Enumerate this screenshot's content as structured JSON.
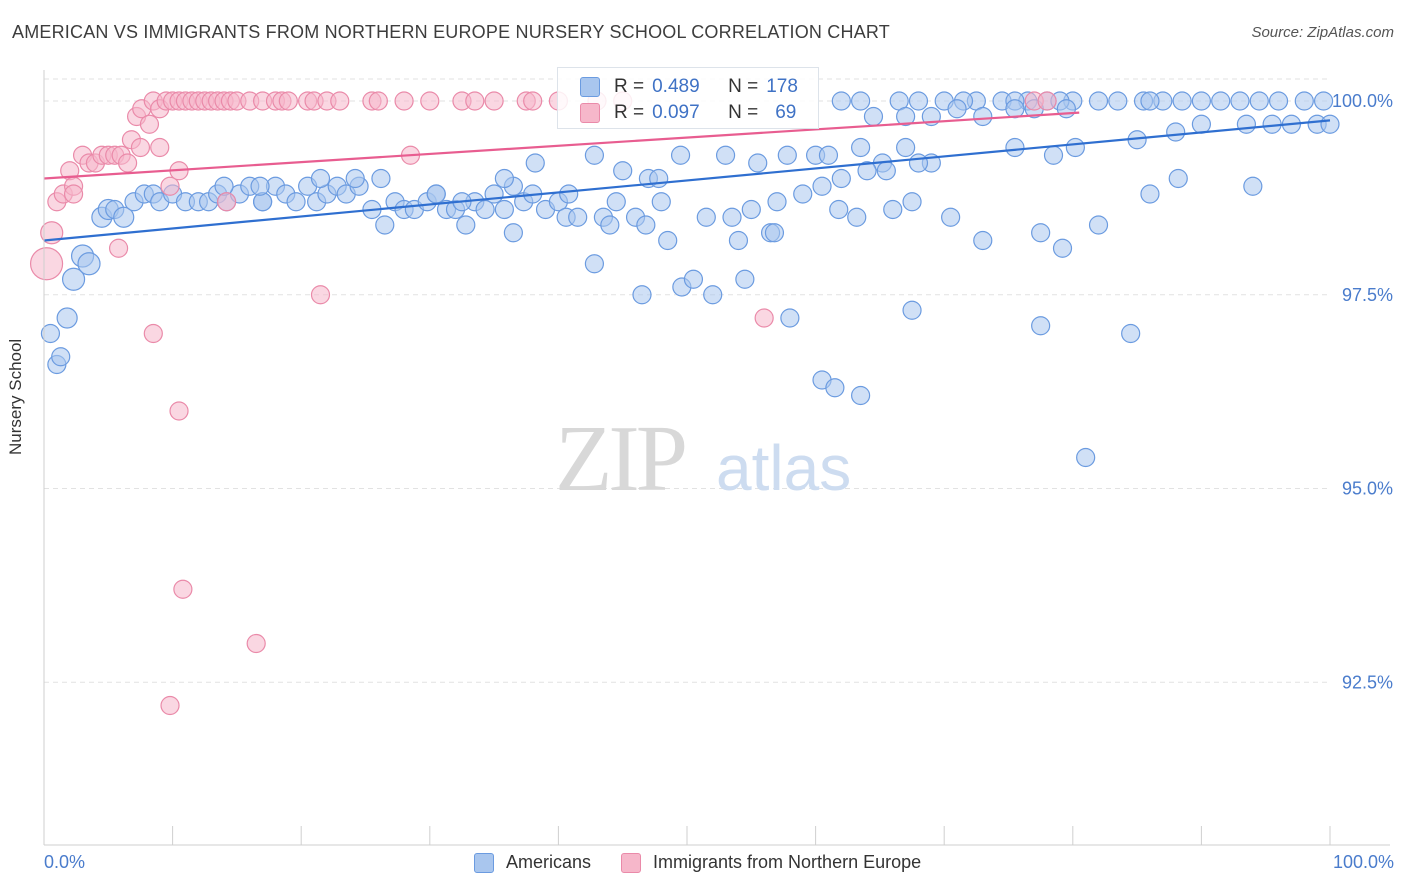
{
  "title": "AMERICAN VS IMMIGRANTS FROM NORTHERN EUROPE NURSERY SCHOOL CORRELATION CHART",
  "source": "Source: ZipAtlas.com",
  "watermark": {
    "zip": "ZIP",
    "atlas": "atlas"
  },
  "stats": {
    "americans": {
      "r_label": "R =",
      "r_value": "0.489",
      "n_label": "N =",
      "n_value": "178"
    },
    "immigrants": {
      "r_label": "R =",
      "r_value": "0.097",
      "n_label": "N =",
      "n_value": "69"
    }
  },
  "legend": {
    "americans": "Americans",
    "immigrants": "Immigrants from Northern Europe"
  },
  "colors": {
    "americans_fill": "#a9c6ee",
    "americans_stroke": "#6b9be0",
    "americans_line": "#2f6fd0",
    "immigrants_fill": "#f6b7ca",
    "immigrants_stroke": "#ea8aa9",
    "immigrants_line": "#e85d90",
    "tick_label": "#4a7ccc"
  },
  "chart_data": {
    "type": "scatter",
    "title": "AMERICAN VS IMMIGRANTS FROM NORTHERN EUROPE NURSERY SCHOOL CORRELATION CHART",
    "xlabel": "",
    "ylabel": "Nursery School",
    "xlim": [
      0,
      100
    ],
    "ylim": [
      90.4,
      100.4
    ],
    "x_tick_labels": [
      "0.0%",
      "100.0%"
    ],
    "y_ticks": [
      92.5,
      95.0,
      97.5,
      100.0
    ],
    "y_tick_labels": [
      "92.5%",
      "95.0%",
      "97.5%",
      "100.0%"
    ],
    "grid": true,
    "series": [
      {
        "name": "Americans",
        "trend": {
          "x": [
            0,
            100
          ],
          "y": [
            98.2,
            99.75
          ]
        },
        "points": [
          [
            0.5,
            97.0,
            9
          ],
          [
            1,
            96.6,
            9
          ],
          [
            1.3,
            96.7,
            9
          ],
          [
            1.8,
            97.2,
            10
          ],
          [
            2.3,
            97.7,
            11
          ],
          [
            3,
            98.0,
            11
          ],
          [
            3.5,
            97.9,
            11
          ],
          [
            4.5,
            98.5,
            10
          ],
          [
            5,
            98.6,
            10
          ],
          [
            5.5,
            98.6,
            9
          ],
          [
            6.2,
            98.5,
            10
          ],
          [
            7,
            98.7,
            9
          ],
          [
            7.8,
            98.8,
            9
          ],
          [
            8.5,
            98.8,
            9
          ],
          [
            9,
            98.7,
            9
          ],
          [
            10,
            98.8,
            9
          ],
          [
            11,
            98.7,
            9
          ],
          [
            12,
            98.7,
            9
          ],
          [
            12.8,
            98.7,
            9
          ],
          [
            13.5,
            98.8,
            9
          ],
          [
            14.2,
            98.7,
            9
          ],
          [
            15.2,
            98.8,
            9
          ],
          [
            16,
            98.9,
            9
          ],
          [
            17,
            98.7,
            9
          ],
          [
            18,
            98.9,
            9
          ],
          [
            18.8,
            98.8,
            9
          ],
          [
            19.6,
            98.7,
            9
          ],
          [
            20.5,
            98.9,
            9
          ],
          [
            21.2,
            98.7,
            9
          ],
          [
            22,
            98.8,
            9
          ],
          [
            22.8,
            98.9,
            9
          ],
          [
            23.5,
            98.8,
            9
          ],
          [
            24.5,
            98.9,
            9
          ],
          [
            25.5,
            98.6,
            9
          ],
          [
            26.5,
            98.4,
            9
          ],
          [
            27.3,
            98.7,
            9
          ],
          [
            28,
            98.6,
            9
          ],
          [
            28.8,
            98.6,
            9
          ],
          [
            29.8,
            98.7,
            9
          ],
          [
            30.5,
            98.8,
            9
          ],
          [
            31.3,
            98.6,
            9
          ],
          [
            32,
            98.6,
            9
          ],
          [
            32.8,
            98.4,
            9
          ],
          [
            33.5,
            98.7,
            9
          ],
          [
            34.3,
            98.6,
            9
          ],
          [
            35,
            98.8,
            9
          ],
          [
            35.8,
            98.6,
            9
          ],
          [
            36.5,
            98.9,
            9
          ],
          [
            37.3,
            98.7,
            9
          ],
          [
            38,
            98.8,
            9
          ],
          [
            39,
            98.6,
            9
          ],
          [
            40,
            98.7,
            9
          ],
          [
            40.8,
            98.8,
            9
          ],
          [
            17,
            98.7,
            9
          ],
          [
            14,
            98.9,
            9
          ],
          [
            16.8,
            98.9,
            9
          ],
          [
            21.5,
            99.0,
            9
          ],
          [
            24.2,
            99.0,
            9
          ],
          [
            26.2,
            99.0,
            9
          ],
          [
            30.5,
            98.8,
            9
          ],
          [
            32.5,
            98.7,
            9
          ],
          [
            35.8,
            99.0,
            9
          ],
          [
            38.2,
            99.2,
            9
          ],
          [
            42.8,
            99.3,
            9
          ],
          [
            45,
            99.1,
            9
          ],
          [
            47,
            99.0,
            9
          ],
          [
            47.8,
            99.0,
            9
          ],
          [
            49.5,
            99.3,
            9
          ],
          [
            53,
            99.3,
            9
          ],
          [
            55.5,
            99.2,
            9
          ],
          [
            57.8,
            99.3,
            9
          ],
          [
            60,
            99.3,
            9
          ],
          [
            61,
            99.3,
            9
          ],
          [
            63.5,
            99.4,
            9
          ],
          [
            65.2,
            99.2,
            9
          ],
          [
            67,
            99.4,
            9
          ],
          [
            69,
            99.2,
            9
          ],
          [
            75.5,
            99.4,
            9
          ],
          [
            78.5,
            99.3,
            9
          ],
          [
            80.2,
            99.4,
            9
          ],
          [
            85,
            99.5,
            9
          ],
          [
            88,
            99.6,
            9
          ],
          [
            90,
            99.7,
            9
          ],
          [
            93.5,
            99.7,
            9
          ],
          [
            95.5,
            99.7,
            9
          ],
          [
            97,
            99.7,
            9
          ],
          [
            99,
            99.7,
            9
          ],
          [
            100,
            99.7,
            9
          ],
          [
            46,
            98.5,
            9
          ],
          [
            43.5,
            98.5,
            9
          ],
          [
            44.5,
            98.7,
            9
          ],
          [
            48,
            98.7,
            9
          ],
          [
            51.5,
            98.5,
            9
          ],
          [
            53.5,
            98.5,
            9
          ],
          [
            55,
            98.6,
            9
          ],
          [
            57,
            98.7,
            9
          ],
          [
            59,
            98.8,
            9
          ],
          [
            60.5,
            98.9,
            9
          ],
          [
            62,
            99.0,
            9
          ],
          [
            64,
            99.1,
            9
          ],
          [
            65.5,
            99.1,
            9
          ],
          [
            68,
            99.2,
            9
          ],
          [
            36.5,
            98.3,
            9
          ],
          [
            40.6,
            98.5,
            9
          ],
          [
            41.5,
            98.5,
            9
          ],
          [
            44,
            98.4,
            9
          ],
          [
            46.8,
            98.4,
            9
          ],
          [
            48.5,
            98.2,
            9
          ],
          [
            54,
            98.2,
            9
          ],
          [
            56.5,
            98.3,
            9
          ],
          [
            61.8,
            98.6,
            9
          ],
          [
            63.2,
            98.5,
            9
          ],
          [
            66,
            98.6,
            9
          ],
          [
            67.5,
            98.7,
            9
          ],
          [
            70.5,
            98.5,
            9
          ],
          [
            73,
            98.2,
            9
          ],
          [
            77.5,
            98.3,
            9
          ],
          [
            79.2,
            98.1,
            9
          ],
          [
            82,
            98.4,
            9
          ],
          [
            86,
            98.8,
            9
          ],
          [
            88.2,
            99.0,
            9
          ],
          [
            94,
            98.9,
            9
          ],
          [
            56.8,
            98.3,
            9
          ],
          [
            42.8,
            97.9,
            9
          ],
          [
            46.5,
            97.5,
            9
          ],
          [
            49.6,
            97.6,
            9
          ],
          [
            50.5,
            97.7,
            9
          ],
          [
            52,
            97.5,
            9
          ],
          [
            54.5,
            97.7,
            9
          ],
          [
            58,
            97.2,
            9
          ],
          [
            60.5,
            96.4,
            9
          ],
          [
            61.5,
            96.3,
            9
          ],
          [
            63.5,
            96.2,
            9
          ],
          [
            67.5,
            97.3,
            9
          ],
          [
            77.5,
            97.1,
            9
          ],
          [
            81,
            95.4,
            9
          ],
          [
            84.5,
            97.0,
            9
          ],
          [
            62,
            100.0,
            9
          ],
          [
            63.5,
            100.0,
            9
          ],
          [
            66.5,
            100.0,
            9
          ],
          [
            68,
            100.0,
            9
          ],
          [
            70,
            100.0,
            9
          ],
          [
            72.5,
            100.0,
            9
          ],
          [
            74.5,
            100.0,
            9
          ],
          [
            76.5,
            100.0,
            9
          ],
          [
            78,
            100.0,
            9
          ],
          [
            80,
            100.0,
            9
          ],
          [
            82,
            100.0,
            9
          ],
          [
            83.5,
            100.0,
            9
          ],
          [
            85.5,
            100.0,
            9
          ],
          [
            87,
            100.0,
            9
          ],
          [
            88.5,
            100.0,
            9
          ],
          [
            90,
            100.0,
            9
          ],
          [
            91.5,
            100.0,
            9
          ],
          [
            93,
            100.0,
            9
          ],
          [
            94.5,
            100.0,
            9
          ],
          [
            96,
            100.0,
            9
          ],
          [
            98,
            100.0,
            9
          ],
          [
            99.5,
            100.0,
            9
          ],
          [
            71.5,
            100.0,
            9
          ],
          [
            75.5,
            100.0,
            9
          ],
          [
            79,
            100.0,
            9
          ],
          [
            86,
            100.0,
            9
          ],
          [
            64.5,
            99.8,
            9
          ],
          [
            67,
            99.8,
            9
          ],
          [
            69,
            99.8,
            9
          ],
          [
            71,
            99.9,
            9
          ],
          [
            73,
            99.8,
            9
          ],
          [
            75.5,
            99.9,
            9
          ],
          [
            77,
            99.9,
            9
          ],
          [
            79.5,
            99.9,
            9
          ]
        ]
      },
      {
        "name": "Immigrants from Northern Europe",
        "trend": {
          "x": [
            0,
            80.5
          ],
          "y": [
            99.0,
            99.85
          ]
        },
        "points": [
          [
            0.2,
            97.9,
            16
          ],
          [
            0.6,
            98.3,
            11
          ],
          [
            1,
            98.7,
            9
          ],
          [
            1.5,
            98.8,
            9
          ],
          [
            2,
            99.1,
            9
          ],
          [
            2.3,
            98.9,
            9
          ],
          [
            3,
            99.3,
            9
          ],
          [
            3.5,
            99.2,
            9
          ],
          [
            4,
            99.2,
            9
          ],
          [
            4.5,
            99.3,
            9
          ],
          [
            5,
            99.3,
            9
          ],
          [
            5.5,
            99.3,
            9
          ],
          [
            6,
            99.3,
            9
          ],
          [
            6.8,
            99.5,
            9
          ],
          [
            7.2,
            99.8,
            9
          ],
          [
            7.6,
            99.9,
            9
          ],
          [
            8.2,
            99.7,
            9
          ],
          [
            8.5,
            100.0,
            9
          ],
          [
            9,
            99.9,
            9
          ],
          [
            9.5,
            100.0,
            9
          ],
          [
            10,
            100.0,
            9
          ],
          [
            10.5,
            100.0,
            9
          ],
          [
            11,
            100.0,
            9
          ],
          [
            11.5,
            100.0,
            9
          ],
          [
            12,
            100.0,
            9
          ],
          [
            12.5,
            100.0,
            9
          ],
          [
            13,
            100.0,
            9
          ],
          [
            13.5,
            100.0,
            9
          ],
          [
            14,
            100.0,
            9
          ],
          [
            14.5,
            100.0,
            9
          ],
          [
            15,
            100.0,
            9
          ],
          [
            16,
            100.0,
            9
          ],
          [
            17,
            100.0,
            9
          ],
          [
            18,
            100.0,
            9
          ],
          [
            18.5,
            100.0,
            9
          ],
          [
            19,
            100.0,
            9
          ],
          [
            20.5,
            100.0,
            9
          ],
          [
            21,
            100.0,
            9
          ],
          [
            22,
            100.0,
            9
          ],
          [
            23,
            100.0,
            9
          ],
          [
            25.5,
            100.0,
            9
          ],
          [
            26,
            100.0,
            9
          ],
          [
            28,
            100.0,
            9
          ],
          [
            30,
            100.0,
            9
          ],
          [
            32.5,
            100.0,
            9
          ],
          [
            33.5,
            100.0,
            9
          ],
          [
            35,
            100.0,
            9
          ],
          [
            37.5,
            100.0,
            9
          ],
          [
            38,
            100.0,
            9
          ],
          [
            40,
            100.0,
            9
          ],
          [
            43,
            100.0,
            9
          ],
          [
            45,
            100.0,
            9
          ],
          [
            77,
            100.0,
            9
          ],
          [
            78,
            100.0,
            9
          ],
          [
            2.3,
            98.8,
            9
          ],
          [
            6.5,
            99.2,
            9
          ],
          [
            7.5,
            99.4,
            9
          ],
          [
            9,
            99.4,
            9
          ],
          [
            9.8,
            98.9,
            9
          ],
          [
            10.5,
            99.1,
            9
          ],
          [
            14.2,
            98.7,
            9
          ],
          [
            28.5,
            99.3,
            9
          ],
          [
            5.8,
            98.1,
            9
          ],
          [
            8.5,
            97.0,
            9
          ],
          [
            21.5,
            97.5,
            9
          ],
          [
            10.5,
            96.0,
            9
          ],
          [
            56,
            97.2,
            9
          ],
          [
            10.8,
            93.7,
            9
          ],
          [
            16.5,
            93.0,
            9
          ],
          [
            9.8,
            92.2,
            9
          ]
        ]
      }
    ]
  }
}
